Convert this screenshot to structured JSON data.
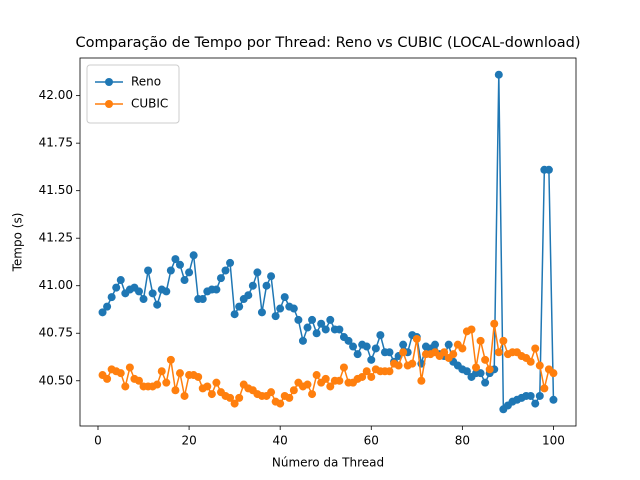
{
  "chart_data": {
    "type": "line",
    "title": "Comparação de Tempo por Thread: Reno vs CUBIC (LOCAL-download)",
    "x_label": "Número da Thread",
    "y_label": "Tempo (s)",
    "x": [
      1,
      2,
      3,
      4,
      5,
      6,
      7,
      8,
      9,
      10,
      11,
      12,
      13,
      14,
      15,
      16,
      17,
      18,
      19,
      20,
      21,
      22,
      23,
      24,
      25,
      26,
      27,
      28,
      29,
      30,
      31,
      32,
      33,
      34,
      35,
      36,
      37,
      38,
      39,
      40,
      41,
      42,
      43,
      44,
      45,
      46,
      47,
      48,
      49,
      50,
      51,
      52,
      53,
      54,
      55,
      56,
      57,
      58,
      59,
      60,
      61,
      62,
      63,
      64,
      65,
      66,
      67,
      68,
      69,
      70,
      71,
      72,
      73,
      74,
      75,
      76,
      77,
      78,
      79,
      80,
      81,
      82,
      83,
      84,
      85,
      86,
      87,
      88,
      89,
      90,
      91,
      92,
      93,
      94,
      95,
      96,
      97,
      98,
      99,
      100
    ],
    "series": [
      {
        "name": "Reno",
        "color": "#1f77b4",
        "values": [
          40.86,
          40.89,
          40.94,
          40.99,
          41.03,
          40.96,
          40.98,
          40.99,
          40.97,
          40.93,
          41.08,
          40.96,
          40.9,
          40.98,
          40.97,
          41.08,
          41.14,
          41.11,
          41.03,
          41.07,
          41.16,
          40.93,
          40.93,
          40.97,
          40.98,
          40.98,
          41.04,
          41.08,
          41.12,
          40.85,
          40.89,
          40.93,
          40.95,
          41.0,
          41.07,
          40.86,
          41.0,
          41.05,
          40.84,
          40.88,
          40.94,
          40.89,
          40.88,
          40.82,
          40.71,
          40.78,
          40.82,
          40.75,
          40.8,
          40.77,
          40.82,
          40.77,
          40.77,
          40.73,
          40.71,
          40.68,
          40.64,
          40.69,
          40.68,
          40.61,
          40.67,
          40.74,
          40.65,
          40.65,
          40.6,
          40.63,
          40.69,
          40.65,
          40.74,
          40.73,
          40.59,
          40.68,
          40.67,
          40.69,
          40.64,
          40.63,
          40.69,
          40.6,
          40.58,
          40.56,
          40.55,
          40.52,
          40.54,
          40.54,
          40.49,
          40.54,
          40.56,
          42.11,
          40.35,
          40.37,
          40.39,
          40.4,
          40.41,
          40.42,
          40.42,
          40.38,
          40.42,
          41.61,
          41.61,
          40.4
        ]
      },
      {
        "name": "CUBIC",
        "color": "#ff7f0e",
        "values": [
          40.53,
          40.51,
          40.56,
          40.55,
          40.54,
          40.47,
          40.57,
          40.51,
          40.5,
          40.47,
          40.47,
          40.47,
          40.48,
          40.55,
          40.49,
          40.61,
          40.45,
          40.54,
          40.42,
          40.53,
          40.53,
          40.52,
          40.46,
          40.47,
          40.43,
          40.49,
          40.44,
          40.42,
          40.41,
          40.38,
          40.41,
          40.48,
          40.46,
          40.45,
          40.43,
          40.42,
          40.42,
          40.44,
          40.39,
          40.38,
          40.42,
          40.41,
          40.45,
          40.49,
          40.47,
          40.48,
          40.43,
          40.53,
          40.49,
          40.51,
          40.47,
          40.5,
          40.5,
          40.57,
          40.49,
          40.49,
          40.51,
          40.52,
          40.55,
          40.52,
          40.56,
          40.55,
          40.55,
          40.55,
          40.59,
          40.58,
          40.65,
          40.58,
          40.59,
          40.72,
          40.5,
          40.64,
          40.64,
          40.65,
          40.63,
          40.65,
          40.62,
          40.64,
          40.69,
          40.67,
          40.76,
          40.77,
          40.57,
          40.71,
          40.61,
          40.56,
          40.8,
          40.65,
          40.71,
          40.64,
          40.65,
          40.65,
          40.63,
          40.62,
          40.6,
          40.67,
          40.58,
          40.46,
          40.56,
          40.54
        ]
      }
    ],
    "xlim": [
      -3.95,
      104.95
    ],
    "ylim": [
      40.262,
      42.198
    ],
    "xticks": [
      0,
      20,
      40,
      60,
      80,
      100
    ],
    "yticks": [
      {
        "value": 40.5,
        "label": "40.50"
      },
      40.75,
      {
        "value": 41,
        "label": "41.00"
      },
      41.25,
      {
        "value": 41.5,
        "label": "41.50"
      },
      41.75,
      {
        "value": 42,
        "label": "42.00"
      }
    ],
    "legend": "upper left",
    "grid": false
  }
}
